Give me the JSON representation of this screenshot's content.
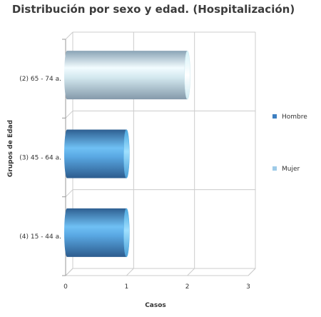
{
  "chart_data": {
    "type": "bar",
    "orientation": "horizontal",
    "title": "Distribución por sexo y edad. (Hospitalización)",
    "xlabel": "Casos",
    "ylabel": "Grupos de Edad",
    "categories": [
      "(2) 65 - 74 a.",
      "(3) 45 - 64 a.",
      "(4) 15 - 44 a."
    ],
    "series": [
      {
        "name": "Hombre",
        "values": [
          0,
          1,
          1
        ],
        "color": "#3d7fc1"
      },
      {
        "name": "Mujer",
        "values": [
          2,
          0,
          0
        ],
        "color": "#9ecbe8"
      }
    ],
    "xlim": [
      0,
      3
    ],
    "xticks": [
      "0",
      "1",
      "2",
      "3"
    ],
    "grid": true,
    "legend_position": "right",
    "style": "3d-cylinder"
  }
}
